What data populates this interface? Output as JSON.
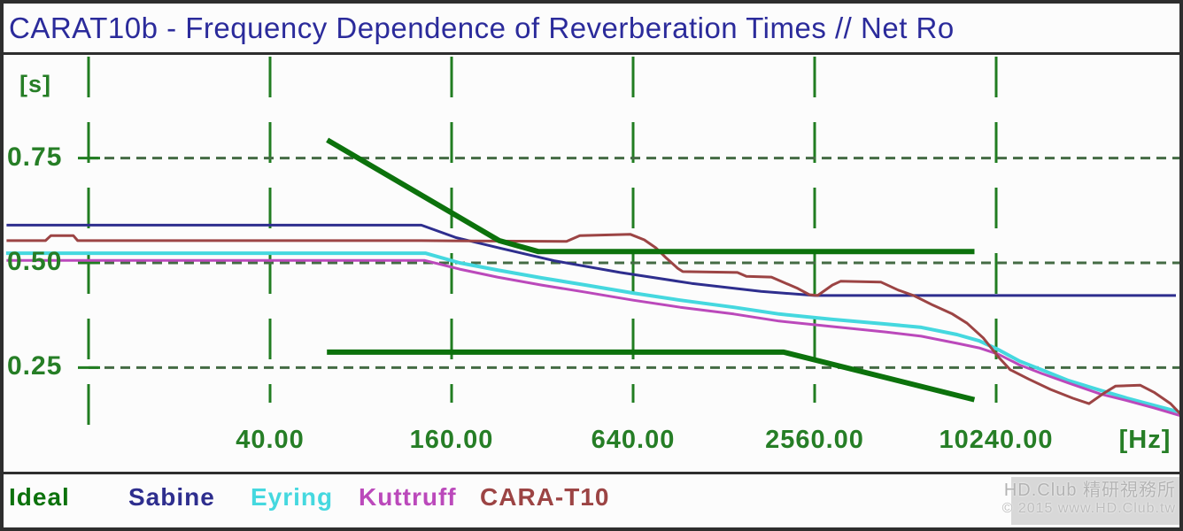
{
  "window": {
    "title": "CARAT10b - Frequency Dependence of Reverberation Times // Net Ro"
  },
  "chart_data": {
    "type": "line",
    "title": "CARAT10b - Frequency Dependence of Reverberation Times // Net Ro",
    "x_axis": {
      "unit_label": "[Hz]",
      "scale": "log4",
      "range_hz": [
        5,
        45000
      ],
      "gridline_freqs": [
        10,
        40,
        160,
        640,
        2560,
        10240
      ],
      "ticks": [
        {
          "value": 40,
          "label": "40.00"
        },
        {
          "value": 160,
          "label": "160.00"
        },
        {
          "value": 640,
          "label": "640.00"
        },
        {
          "value": 2560,
          "label": "2560.00"
        },
        {
          "value": 10240,
          "label": "10240.00"
        }
      ]
    },
    "y_axis": {
      "unit_label": "[s]",
      "range_s": [
        0.1,
        0.95
      ],
      "ticks": [
        {
          "value": 0.75,
          "label": "0.75"
        },
        {
          "value": 0.5,
          "label": "0.50"
        },
        {
          "value": 0.25,
          "label": "0.25"
        }
      ],
      "grid": "dashed"
    },
    "series": [
      {
        "name": "Sabine",
        "color": "#2e2e8e",
        "width": 3,
        "segments": [
          [
            [
              5.4,
              0.59
            ],
            [
              127,
              0.59
            ],
            [
              166,
              0.56
            ],
            [
              232,
              0.535
            ],
            [
              350,
              0.505
            ],
            [
              580,
              0.477
            ],
            [
              1000,
              0.451
            ],
            [
              1700,
              0.432
            ],
            [
              2560,
              0.422
            ],
            [
              40000,
              0.422
            ]
          ]
        ]
      },
      {
        "name": "Eyring",
        "color": "#45d8df",
        "width": 4,
        "segments": [
          [
            [
              5.4,
              0.523
            ],
            [
              131,
              0.523
            ],
            [
              170,
              0.5
            ],
            [
              227,
              0.483
            ],
            [
              318,
              0.464
            ],
            [
              446,
              0.447
            ],
            [
              640,
              0.428
            ],
            [
              918,
              0.411
            ],
            [
              1380,
              0.394
            ],
            [
              1950,
              0.378
            ],
            [
              2930,
              0.365
            ],
            [
              4400,
              0.354
            ],
            [
              5780,
              0.346
            ],
            [
              7590,
              0.329
            ],
            [
              8990,
              0.314
            ],
            [
              10400,
              0.293
            ],
            [
              12200,
              0.266
            ],
            [
              14500,
              0.245
            ],
            [
              17800,
              0.219
            ],
            [
              22700,
              0.196
            ],
            [
              27900,
              0.177
            ],
            [
              34200,
              0.16
            ],
            [
              42000,
              0.143
            ]
          ]
        ]
      },
      {
        "name": "Kuttruff",
        "color": "#bb49bb",
        "width": 3,
        "segments": [
          [
            [
              5.4,
              0.506
            ],
            [
              130,
              0.506
            ],
            [
              170,
              0.485
            ],
            [
              227,
              0.466
            ],
            [
              318,
              0.447
            ],
            [
              446,
              0.43
            ],
            [
              640,
              0.411
            ],
            [
              918,
              0.394
            ],
            [
              1380,
              0.378
            ],
            [
              1950,
              0.361
            ],
            [
              2930,
              0.348
            ],
            [
              4400,
              0.335
            ],
            [
              5780,
              0.325
            ],
            [
              7590,
              0.308
            ],
            [
              8990,
              0.297
            ],
            [
              10400,
              0.282
            ],
            [
              12200,
              0.257
            ],
            [
              14500,
              0.236
            ],
            [
              17800,
              0.213
            ],
            [
              22700,
              0.187
            ],
            [
              27900,
              0.171
            ],
            [
              34200,
              0.154
            ],
            [
              42000,
              0.135
            ]
          ]
        ]
      },
      {
        "name": "CARA-T10",
        "color": "#9c4444",
        "width": 3,
        "segments": [
          [
            [
              5.4,
              0.553
            ],
            [
              7.2,
              0.553
            ],
            [
              7.5,
              0.565
            ],
            [
              8.9,
              0.565
            ],
            [
              9.2,
              0.553
            ],
            [
              127,
              0.553
            ],
            [
              385,
              0.551
            ],
            [
              426,
              0.565
            ],
            [
              627,
              0.568
            ],
            [
              697,
              0.555
            ],
            [
              761,
              0.536
            ],
            [
              826,
              0.511
            ],
            [
              900,
              0.487
            ],
            [
              935,
              0.479
            ],
            [
              1420,
              0.477
            ],
            [
              1520,
              0.468
            ],
            [
              1840,
              0.466
            ],
            [
              2250,
              0.439
            ],
            [
              2460,
              0.424
            ],
            [
              2620,
              0.422
            ],
            [
              2930,
              0.447
            ],
            [
              3120,
              0.456
            ],
            [
              4250,
              0.454
            ],
            [
              4850,
              0.435
            ],
            [
              5450,
              0.422
            ],
            [
              6320,
              0.399
            ],
            [
              7330,
              0.378
            ],
            [
              8200,
              0.356
            ],
            [
              9280,
              0.321
            ],
            [
              10400,
              0.276
            ],
            [
              11400,
              0.245
            ],
            [
              13100,
              0.223
            ],
            [
              15500,
              0.198
            ],
            [
              18400,
              0.177
            ],
            [
              20800,
              0.164
            ],
            [
              23300,
              0.189
            ],
            [
              25500,
              0.206
            ],
            [
              30800,
              0.208
            ],
            [
              34200,
              0.191
            ],
            [
              38800,
              0.164
            ],
            [
              42500,
              0.134
            ],
            [
              44300,
              0.096
            ]
          ]
        ]
      },
      {
        "name": "Ideal",
        "color": "#0c720c",
        "width": 6,
        "segments": [
          [
            [
              63,
              0.79
            ],
            [
              230,
              0.553
            ],
            [
              310,
              0.527
            ],
            [
              8500,
              0.527
            ]
          ],
          [
            [
              63,
              0.287
            ],
            [
              2020,
              0.287
            ],
            [
              8500,
              0.175
            ]
          ]
        ]
      }
    ],
    "legend": [
      "Ideal",
      "Sabine",
      "Eyring",
      "Kuttruff",
      "CARA-T10"
    ],
    "legend_position": "bottom",
    "grid_colors": {
      "vertical": "#217d21",
      "horizontal": "#446b44"
    },
    "label_color": "#267e26"
  },
  "watermark": {
    "line1": "HD.Club 精研視務所",
    "line2": "© 2015 www.HD.Club.tw"
  }
}
